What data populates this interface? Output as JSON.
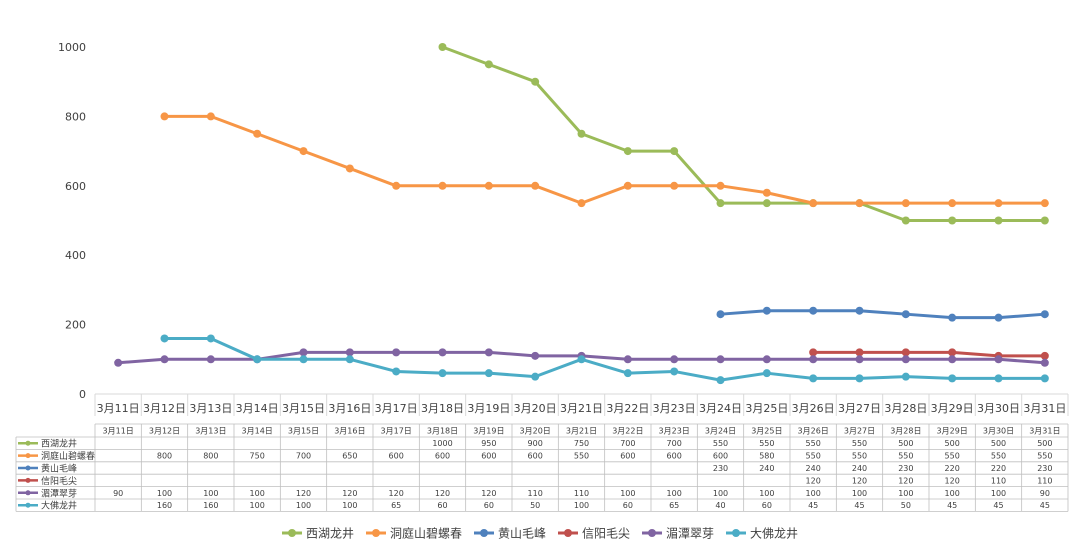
{
  "chart_data": {
    "type": "line",
    "categories": [
      "3月11日",
      "3月12日",
      "3月13日",
      "3月14日",
      "3月15日",
      "3月16日",
      "3月17日",
      "3月18日",
      "3月19日",
      "3月20日",
      "3月21日",
      "3月22日",
      "3月23日",
      "3月24日",
      "3月25日",
      "3月26日",
      "3月27日",
      "3月28日",
      "3月29日",
      "3月30日",
      "3月31日"
    ],
    "ylim": [
      0,
      1000
    ],
    "yticks": [
      0,
      200,
      400,
      600,
      800,
      1000
    ],
    "grid": false,
    "legend": "bottom",
    "series": [
      {
        "name": "西湖龙井",
        "color": "#9bbb59",
        "values": [
          null,
          null,
          null,
          null,
          null,
          null,
          null,
          1000,
          950,
          900,
          750,
          700,
          700,
          550,
          550,
          550,
          550,
          500,
          500,
          500,
          500
        ]
      },
      {
        "name": "洞庭山碧螺春",
        "color": "#f79646",
        "values": [
          null,
          800,
          800,
          750,
          700,
          650,
          600,
          600,
          600,
          600,
          550,
          600,
          600,
          600,
          580,
          550,
          550,
          550,
          550,
          550,
          550
        ]
      },
      {
        "name": "黄山毛峰",
        "color": "#4f81bd",
        "values": [
          null,
          null,
          null,
          null,
          null,
          null,
          null,
          null,
          null,
          null,
          null,
          null,
          null,
          230,
          240,
          240,
          240,
          230,
          220,
          220,
          230
        ]
      },
      {
        "name": "信阳毛尖",
        "color": "#c0504d",
        "values": [
          null,
          null,
          null,
          null,
          null,
          null,
          null,
          null,
          null,
          null,
          null,
          null,
          null,
          null,
          null,
          120,
          120,
          120,
          120,
          110,
          110
        ]
      },
      {
        "name": "湄潭翠芽",
        "color": "#8064a2",
        "values": [
          90,
          100,
          100,
          100,
          120,
          120,
          120,
          120,
          120,
          110,
          110,
          100,
          100,
          100,
          100,
          100,
          100,
          100,
          100,
          100,
          90
        ]
      },
      {
        "name": "大佛龙井",
        "color": "#4bacc6",
        "values": [
          null,
          160,
          160,
          100,
          100,
          100,
          65,
          60,
          60,
          50,
          100,
          60,
          65,
          40,
          60,
          45,
          45,
          50,
          45,
          45,
          45
        ]
      }
    ]
  }
}
